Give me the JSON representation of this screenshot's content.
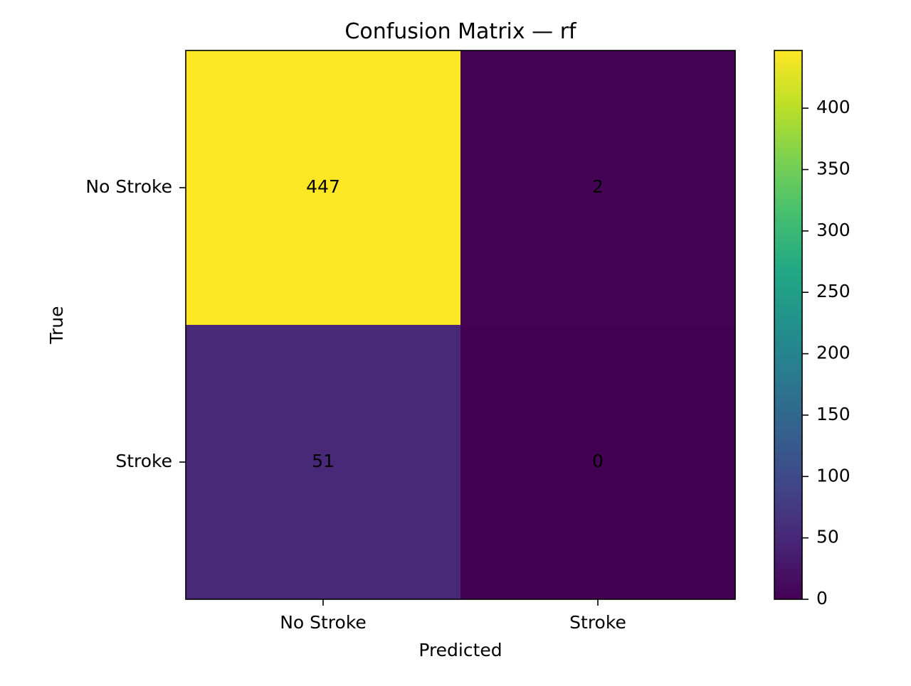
{
  "chart_data": {
    "type": "heatmap",
    "title": "Confusion Matrix — rf",
    "xlabel": "Predicted",
    "ylabel": "True",
    "x_categories": [
      "No Stroke",
      "Stroke"
    ],
    "y_categories": [
      "No Stroke",
      "Stroke"
    ],
    "matrix": [
      [
        447,
        2
      ],
      [
        51,
        0
      ]
    ],
    "colormap": "viridis",
    "colorbar": {
      "min": 0,
      "max": 447,
      "ticks": [
        0,
        50,
        100,
        150,
        200,
        250,
        300,
        350,
        400
      ]
    },
    "grid": false
  }
}
